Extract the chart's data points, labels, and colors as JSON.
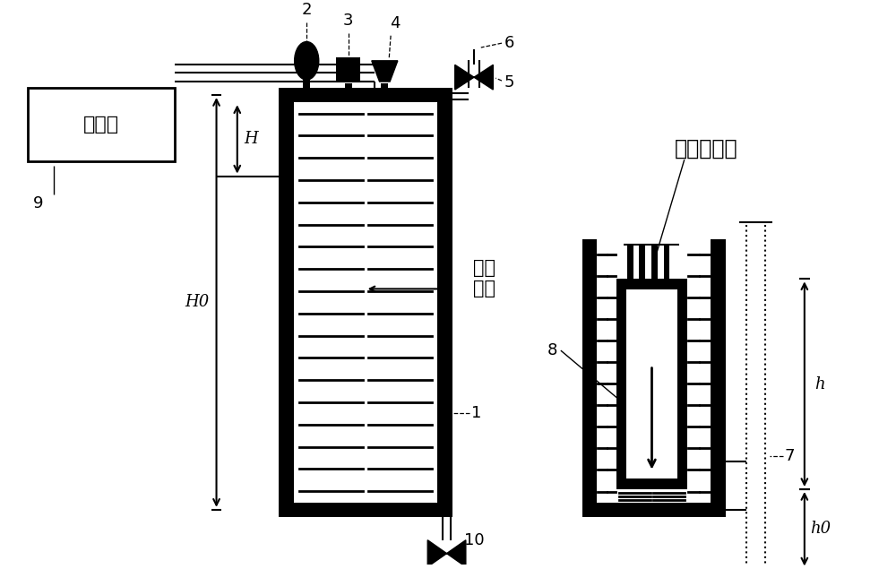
{
  "bg_color": "#ffffff",
  "line_color": "#000000",
  "labels": {
    "control_tai": "控制台",
    "gas_collector": "气体收集器",
    "low_temp_liquid": "低温\n液体",
    "H": "H",
    "H0": "H0",
    "h": "h",
    "h0": "h0",
    "num_1": "1",
    "num_2": "2",
    "num_3": "3",
    "num_4": "4",
    "num_5": "5",
    "num_6": "6",
    "num_7": "7",
    "num_8": "8",
    "num_9": "9",
    "num_10": "10"
  },
  "font_size_num": 13,
  "font_size_chinese": 17
}
